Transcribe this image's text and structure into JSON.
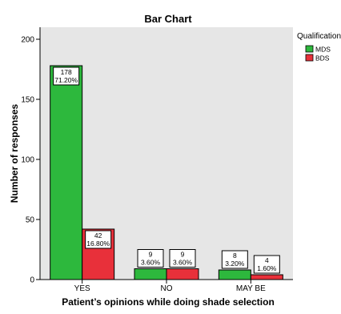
{
  "chart_data": {
    "type": "bar",
    "title": "Bar Chart",
    "xlabel": "Patient’s opinions while doing shade selection",
    "ylabel": "Number of responses",
    "categories": [
      "YES",
      "NO",
      "MAY BE"
    ],
    "series": [
      {
        "name": "MDS",
        "color": "#2db83d",
        "values": [
          178,
          9,
          8
        ],
        "labels": [
          [
            "178",
            "71.20%"
          ],
          [
            "9",
            "3.60%"
          ],
          [
            "8",
            "3.20%"
          ]
        ]
      },
      {
        "name": "BDS",
        "color": "#e8303a",
        "values": [
          42,
          9,
          4
        ],
        "labels": [
          [
            "42",
            "16.80%"
          ],
          [
            "9",
            "3.60%"
          ],
          [
            "4",
            "1.60%"
          ]
        ]
      }
    ],
    "yticks": [
      0,
      50,
      100,
      150,
      200
    ],
    "ylim": [
      0,
      210
    ],
    "legend": {
      "title": "Qualification",
      "position": "right"
    },
    "plot_background": "#e6e6e6"
  }
}
